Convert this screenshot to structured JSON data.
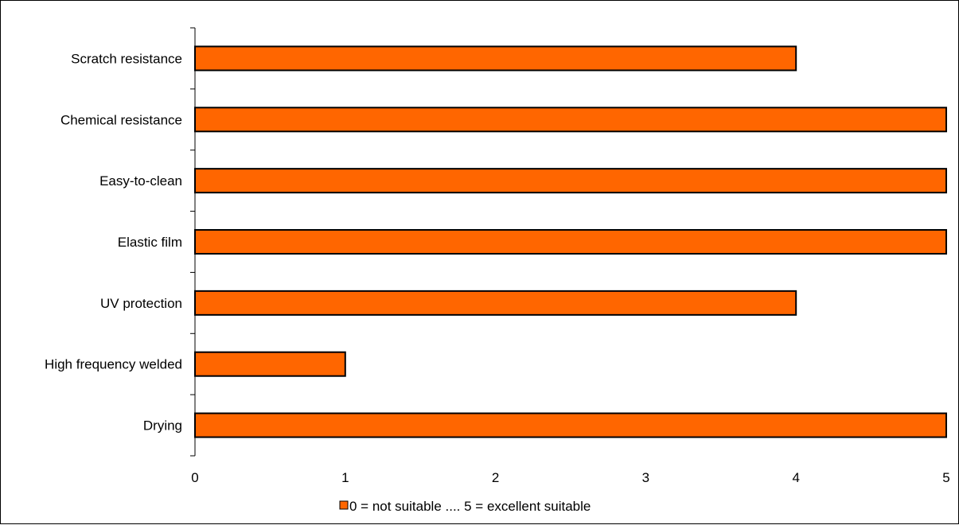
{
  "chart_data": {
    "type": "bar",
    "orientation": "horizontal",
    "categories": [
      "Scratch resistance",
      "Chemical resistance",
      "Easy-to-clean",
      "Elastic film",
      "UV protection",
      "High frequency welded",
      "Drying"
    ],
    "series": [
      {
        "name": "0 = not suitable .... 5 = excellent suitable",
        "values": [
          4,
          5,
          5,
          5,
          4,
          1,
          5
        ],
        "color": "#FF6600"
      }
    ],
    "xlim": [
      0,
      5
    ],
    "xticks": [
      "0",
      "1",
      "2",
      "3",
      "4",
      "5"
    ],
    "grid": false,
    "legend_position": "bottom"
  }
}
